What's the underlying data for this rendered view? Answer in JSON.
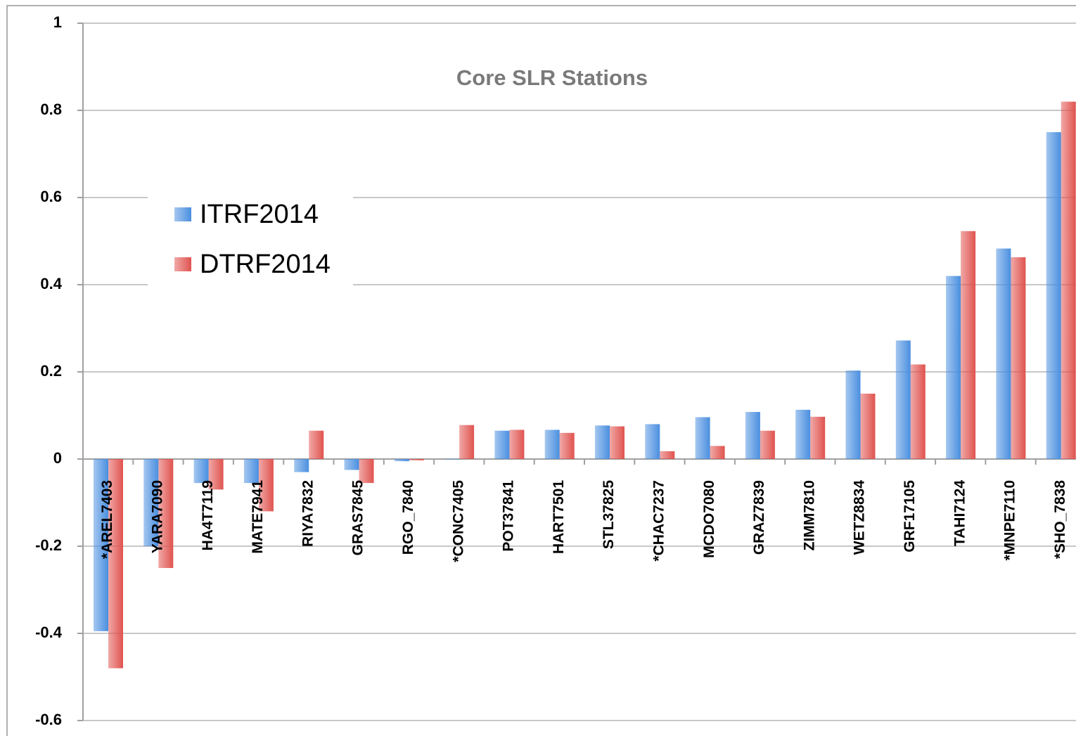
{
  "chart_data": {
    "type": "bar",
    "title": "Core SLR Stations",
    "categories": [
      "*AREL7403",
      "YARA7090",
      "HA4T7119",
      "MATE7941",
      "RIYA7832",
      "GRAS7845",
      "RGO_7840",
      "*CONC7405",
      "POT37841",
      "HART7501",
      "STL37825",
      "*CHAC7237",
      "MCDO7080",
      "GRAZ7839",
      "ZIMM7810",
      "WETZ8834",
      "GRF17105",
      "TAHI7124",
      "*MNPE7110",
      "*SHO_7838"
    ],
    "series": [
      {
        "name": "ITRF2014",
        "color": "#4a8fe0",
        "values": [
          -0.395,
          -0.2,
          -0.055,
          -0.055,
          -0.03,
          -0.025,
          -0.005,
          -0.001,
          0.065,
          0.067,
          0.077,
          0.08,
          0.096,
          0.108,
          0.113,
          0.203,
          0.272,
          0.42,
          0.483,
          0.75
        ]
      },
      {
        "name": "DTRF2014",
        "color": "#e0534f",
        "values": [
          -0.48,
          -0.25,
          -0.07,
          -0.12,
          0.065,
          -0.055,
          -0.003,
          0.078,
          0.067,
          0.06,
          0.075,
          0.018,
          0.03,
          0.065,
          0.097,
          0.15,
          0.217,
          0.523,
          0.463,
          0.82
        ]
      }
    ],
    "ylim": [
      -0.6,
      1
    ],
    "yticks": [
      -0.6,
      -0.4,
      -0.2,
      0,
      0.2,
      0.4,
      0.6,
      0.8,
      1
    ],
    "grid": true,
    "legend": "left"
  }
}
